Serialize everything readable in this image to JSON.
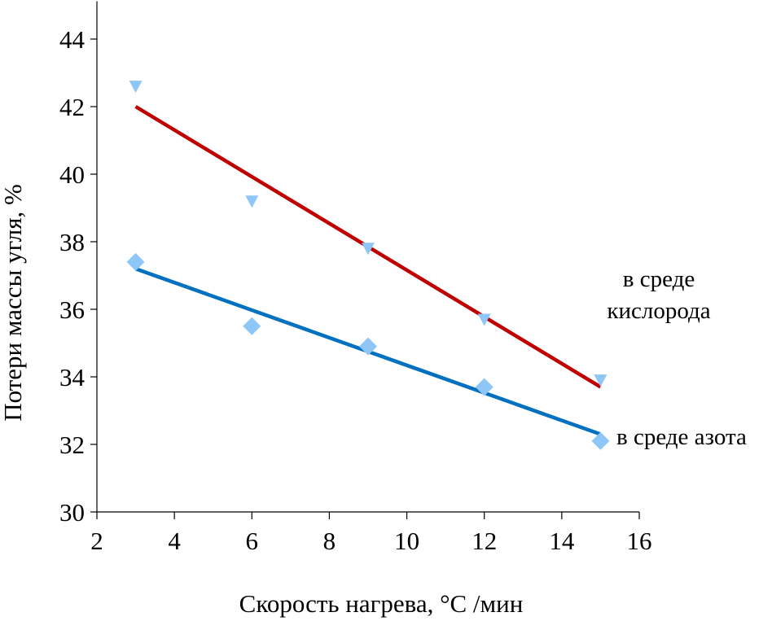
{
  "chart_data": {
    "type": "scatter",
    "xlabel": "Скорость нагрева, °C /мин",
    "ylabel": "Потери массы угля, %",
    "xlim": [
      2,
      16
    ],
    "ylim": [
      30,
      45
    ],
    "x_ticks": [
      2,
      4,
      6,
      8,
      10,
      12,
      14,
      16
    ],
    "y_ticks": [
      30,
      32,
      34,
      36,
      38,
      40,
      42,
      44
    ],
    "grid": false,
    "legend": "none",
    "series": [
      {
        "marker": "triangle-down",
        "color": "#8ec7f7",
        "line_color": "#c00000",
        "x": [
          3,
          6,
          9,
          12,
          15
        ],
        "y": [
          42.6,
          39.2,
          37.8,
          35.7,
          33.9
        ],
        "trend": {
          "x": [
            3,
            15
          ],
          "y": [
            42.0,
            33.7
          ]
        },
        "annotation": [
          "в среде",
          "кислорода"
        ]
      },
      {
        "marker": "diamond",
        "color": "#8ec7f7",
        "line_color": "#0070c0",
        "x": [
          3,
          6,
          9,
          12,
          15
        ],
        "y": [
          37.4,
          35.5,
          34.9,
          33.7,
          32.1
        ],
        "trend": {
          "x": [
            3,
            15
          ],
          "y": [
            37.2,
            32.3
          ]
        },
        "annotation": [
          "в среде азота"
        ]
      }
    ]
  }
}
